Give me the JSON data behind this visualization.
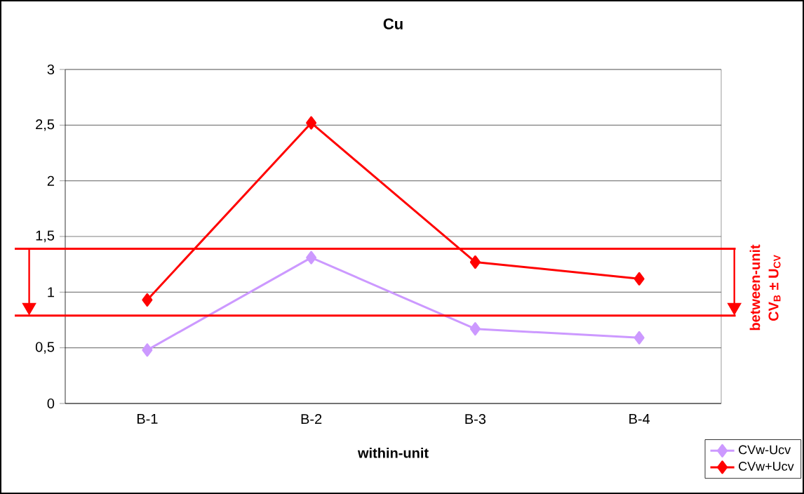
{
  "chart_data": {
    "type": "line",
    "title": "Cu",
    "xlabel": "within-unit",
    "categories": [
      "B-1",
      "B-2",
      "B-3",
      "B-4"
    ],
    "series": [
      {
        "name": "CVw-Ucv",
        "color": "#cc99ff",
        "values": [
          0.48,
          1.31,
          0.67,
          0.59
        ]
      },
      {
        "name": "CVw+Ucv",
        "color": "#ff0000",
        "values": [
          0.93,
          2.52,
          1.27,
          1.12
        ]
      }
    ],
    "ylim": [
      0,
      3
    ],
    "yticks": [
      0,
      {
        "value": 0.5,
        "label": "0,5"
      },
      1,
      {
        "value": 1.5,
        "label": "1,5"
      },
      2,
      {
        "value": 2.5,
        "label": "2,5"
      },
      3
    ],
    "ref_lines": [
      {
        "axis": "y",
        "value": 1.39,
        "color": "#ff0000"
      },
      {
        "axis": "y",
        "value": 0.79,
        "color": "#ff0000"
      }
    ],
    "annotations": [
      "between-unit",
      "CV$_{B}$ ± U$_{CV}$"
    ],
    "grid": "y",
    "legend": "bottom right",
    "marker": "diamond",
    "line_style": "solid"
  }
}
